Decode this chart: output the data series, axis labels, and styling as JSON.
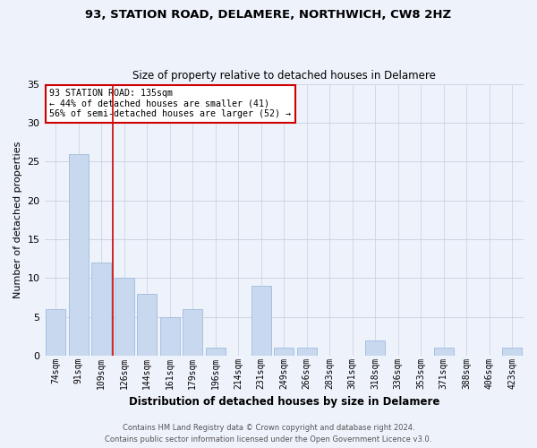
{
  "title1": "93, STATION ROAD, DELAMERE, NORTHWICH, CW8 2HZ",
  "title2": "Size of property relative to detached houses in Delamere",
  "xlabel": "Distribution of detached houses by size in Delamere",
  "ylabel": "Number of detached properties",
  "categories": [
    "74sqm",
    "91sqm",
    "109sqm",
    "126sqm",
    "144sqm",
    "161sqm",
    "179sqm",
    "196sqm",
    "214sqm",
    "231sqm",
    "249sqm",
    "266sqm",
    "283sqm",
    "301sqm",
    "318sqm",
    "336sqm",
    "353sqm",
    "371sqm",
    "388sqm",
    "406sqm",
    "423sqm"
  ],
  "values": [
    6,
    26,
    12,
    10,
    8,
    5,
    6,
    1,
    0,
    9,
    1,
    1,
    0,
    0,
    2,
    0,
    0,
    1,
    0,
    0,
    1
  ],
  "bar_color": "#c8d8ee",
  "bar_edge_color": "#a0bcdc",
  "background_color": "#eef2fb",
  "vline_x": 2.5,
  "annotation_text": "93 STATION ROAD: 135sqm\n← 44% of detached houses are smaller (41)\n56% of semi-detached houses are larger (52) →",
  "annotation_box_color": "#ffffff",
  "annotation_box_edge_color": "#cc0000",
  "vline_color": "#cc0000",
  "footer1": "Contains HM Land Registry data © Crown copyright and database right 2024.",
  "footer2": "Contains public sector information licensed under the Open Government Licence v3.0.",
  "ylim": [
    0,
    35
  ],
  "yticks": [
    0,
    5,
    10,
    15,
    20,
    25,
    30,
    35
  ],
  "title1_fontsize": 9.5,
  "title2_fontsize": 8.5,
  "xlabel_fontsize": 8.5,
  "ylabel_fontsize": 8,
  "tick_fontsize": 7,
  "annot_fontsize": 7.2,
  "footer_fontsize": 6
}
